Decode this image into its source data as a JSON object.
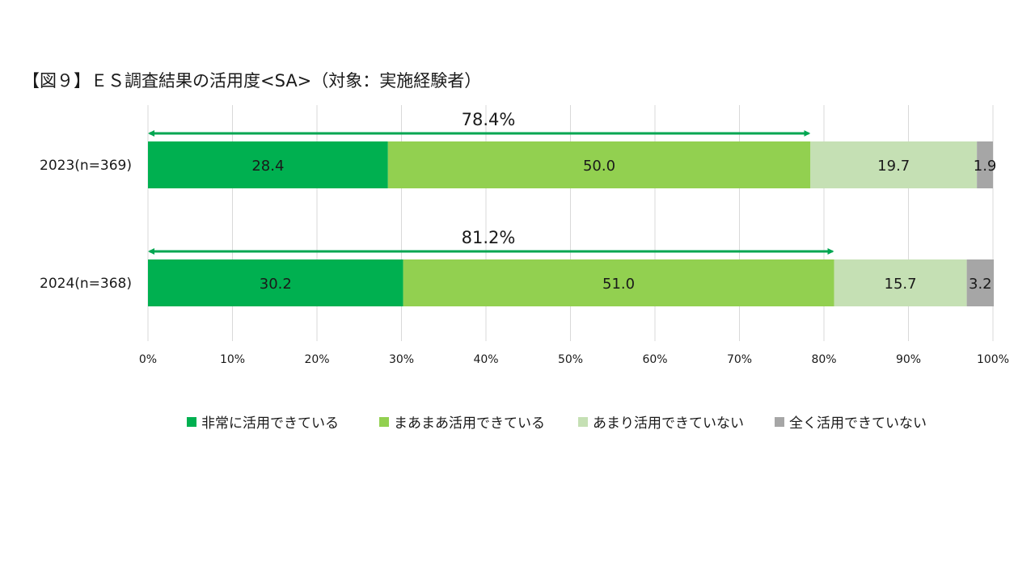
{
  "title": "【図９】ＥＳ調査結果の活用度<SA>（対象：実施経験者）",
  "chart_data": {
    "type": "bar",
    "orientation": "horizontal",
    "stacked": true,
    "percent_stacked": true,
    "categories": [
      "2023(n=369)",
      "2024(n=368)"
    ],
    "series": [
      {
        "name": "非常に活用できている",
        "color": "#00b050",
        "values": [
          28.4,
          30.2
        ],
        "labels": [
          "28.4",
          "30.2"
        ]
      },
      {
        "name": "まあまあ活用できている",
        "color": "#92d050",
        "values": [
          50.0,
          51.0
        ],
        "labels": [
          "50.0",
          "51.0"
        ]
      },
      {
        "name": "あまり活用できていない",
        "color": "#c5e0b4",
        "values": [
          19.7,
          15.7
        ],
        "labels": [
          "19.7",
          "15.7"
        ]
      },
      {
        "name": "全く活用できていない",
        "color": "#a6a6a6",
        "values": [
          1.9,
          3.2
        ],
        "labels": [
          "1.9",
          "3.2"
        ]
      }
    ],
    "xlim": [
      0,
      100
    ],
    "x_ticks": [
      "0%",
      "10%",
      "20%",
      "30%",
      "40%",
      "50%",
      "60%",
      "70%",
      "80%",
      "90%",
      "100%"
    ],
    "grid": "vertical",
    "legend": "bottom",
    "annotations": [
      {
        "category": "2023(n=369)",
        "text": "78.4%",
        "from": 0,
        "to": 78.4,
        "color": "#00a651"
      },
      {
        "category": "2024(n=368)",
        "text": "81.2%",
        "from": 0,
        "to": 81.2,
        "color": "#00a651"
      }
    ]
  }
}
